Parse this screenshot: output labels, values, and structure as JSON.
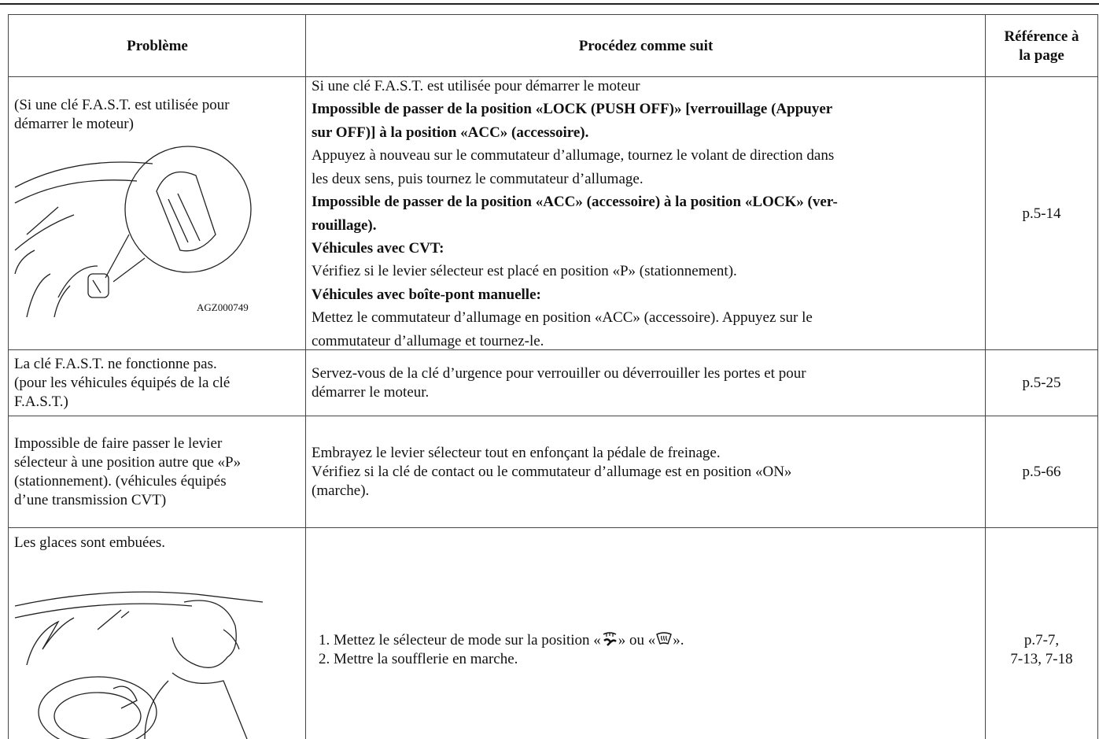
{
  "header": {
    "columns": [
      [
        "Problème"
      ],
      [
        "Procédez comme suit"
      ],
      [
        "Référence à",
        "la page"
      ]
    ]
  },
  "rows": [
    {
      "problem": [
        "(Si une clé F.A.S.T. est utilisée pour",
        "démarrer le moteur)"
      ],
      "caption": "AGZ000749",
      "procedure": [
        {
          "text": "Si une clé F.A.S.T. est utilisée pour démarrer le moteur"
        },
        {
          "text": "Impossible de passer de la position «LOCK (PUSH OFF)» [verrouillage (Appuyer",
          "bold": true
        },
        {
          "text": "sur OFF)] à la position «ACC» (accessoire).",
          "bold": true
        },
        {
          "text": "Appuyez à nouveau sur le commutateur d’allumage, tournez le volant de direction dans"
        },
        {
          "text": "les deux sens, puis tournez le commutateur d’allumage."
        },
        {
          "text": "Impossible de passer de la position «ACC» (accessoire) à la position «LOCK» (ver-",
          "bold": true
        },
        {
          "text": "rouillage).",
          "bold": true
        },
        {
          "text": "Véhicules avec CVT:",
          "bold": true
        },
        {
          "text": "Vérifiez si le levier sélecteur est placé en position «P» (stationnement)."
        },
        {
          "text": "Véhicules avec boîte-pont manuelle:",
          "bold": true
        },
        {
          "text": "Mettez le commutateur d’allumage en position «ACC» (accessoire). Appuyez sur le"
        },
        {
          "text": "commutateur d’allumage et tournez-le."
        }
      ],
      "reference": [
        "p.5-14"
      ]
    },
    {
      "problem": [
        "La clé F.A.S.T. ne fonctionne pas.",
        "(pour les véhicules équipés de la clé",
        "F.A.S.T.)"
      ],
      "procedure": [
        {
          "text": "Servez-vous de la clé d’urgence pour verrouiller ou déverrouiller les portes et pour"
        },
        {
          "text": "démarrer le moteur."
        }
      ],
      "reference": [
        "p.5-25"
      ]
    },
    {
      "problem": [
        "Impossible de faire passer le levier",
        "sélecteur à une position autre que «P»",
        "(stationnement). (véhicules équipés",
        "d’une transmission CVT)"
      ],
      "procedure": [
        {
          "text": "Embrayez le levier sélecteur tout en enfonçant la pédale de freinage."
        },
        {
          "text": "Vérifiez si la clé de contact ou le commutateur d’allumage est en position «ON»"
        },
        {
          "text": "(marche)."
        }
      ],
      "reference": [
        "p.5-66"
      ]
    },
    {
      "problem": [
        "Les glaces sont embuées."
      ],
      "procedure": [
        {
          "parts": [
            "1. Mettez le sélecteur de mode sur la position «",
            "» ou «",
            "»."
          ]
        },
        {
          "text": "2. Mettre la soufflerie en marche."
        }
      ],
      "reference": [
        "p.7-7,",
        "7-13, 7-18"
      ]
    }
  ]
}
